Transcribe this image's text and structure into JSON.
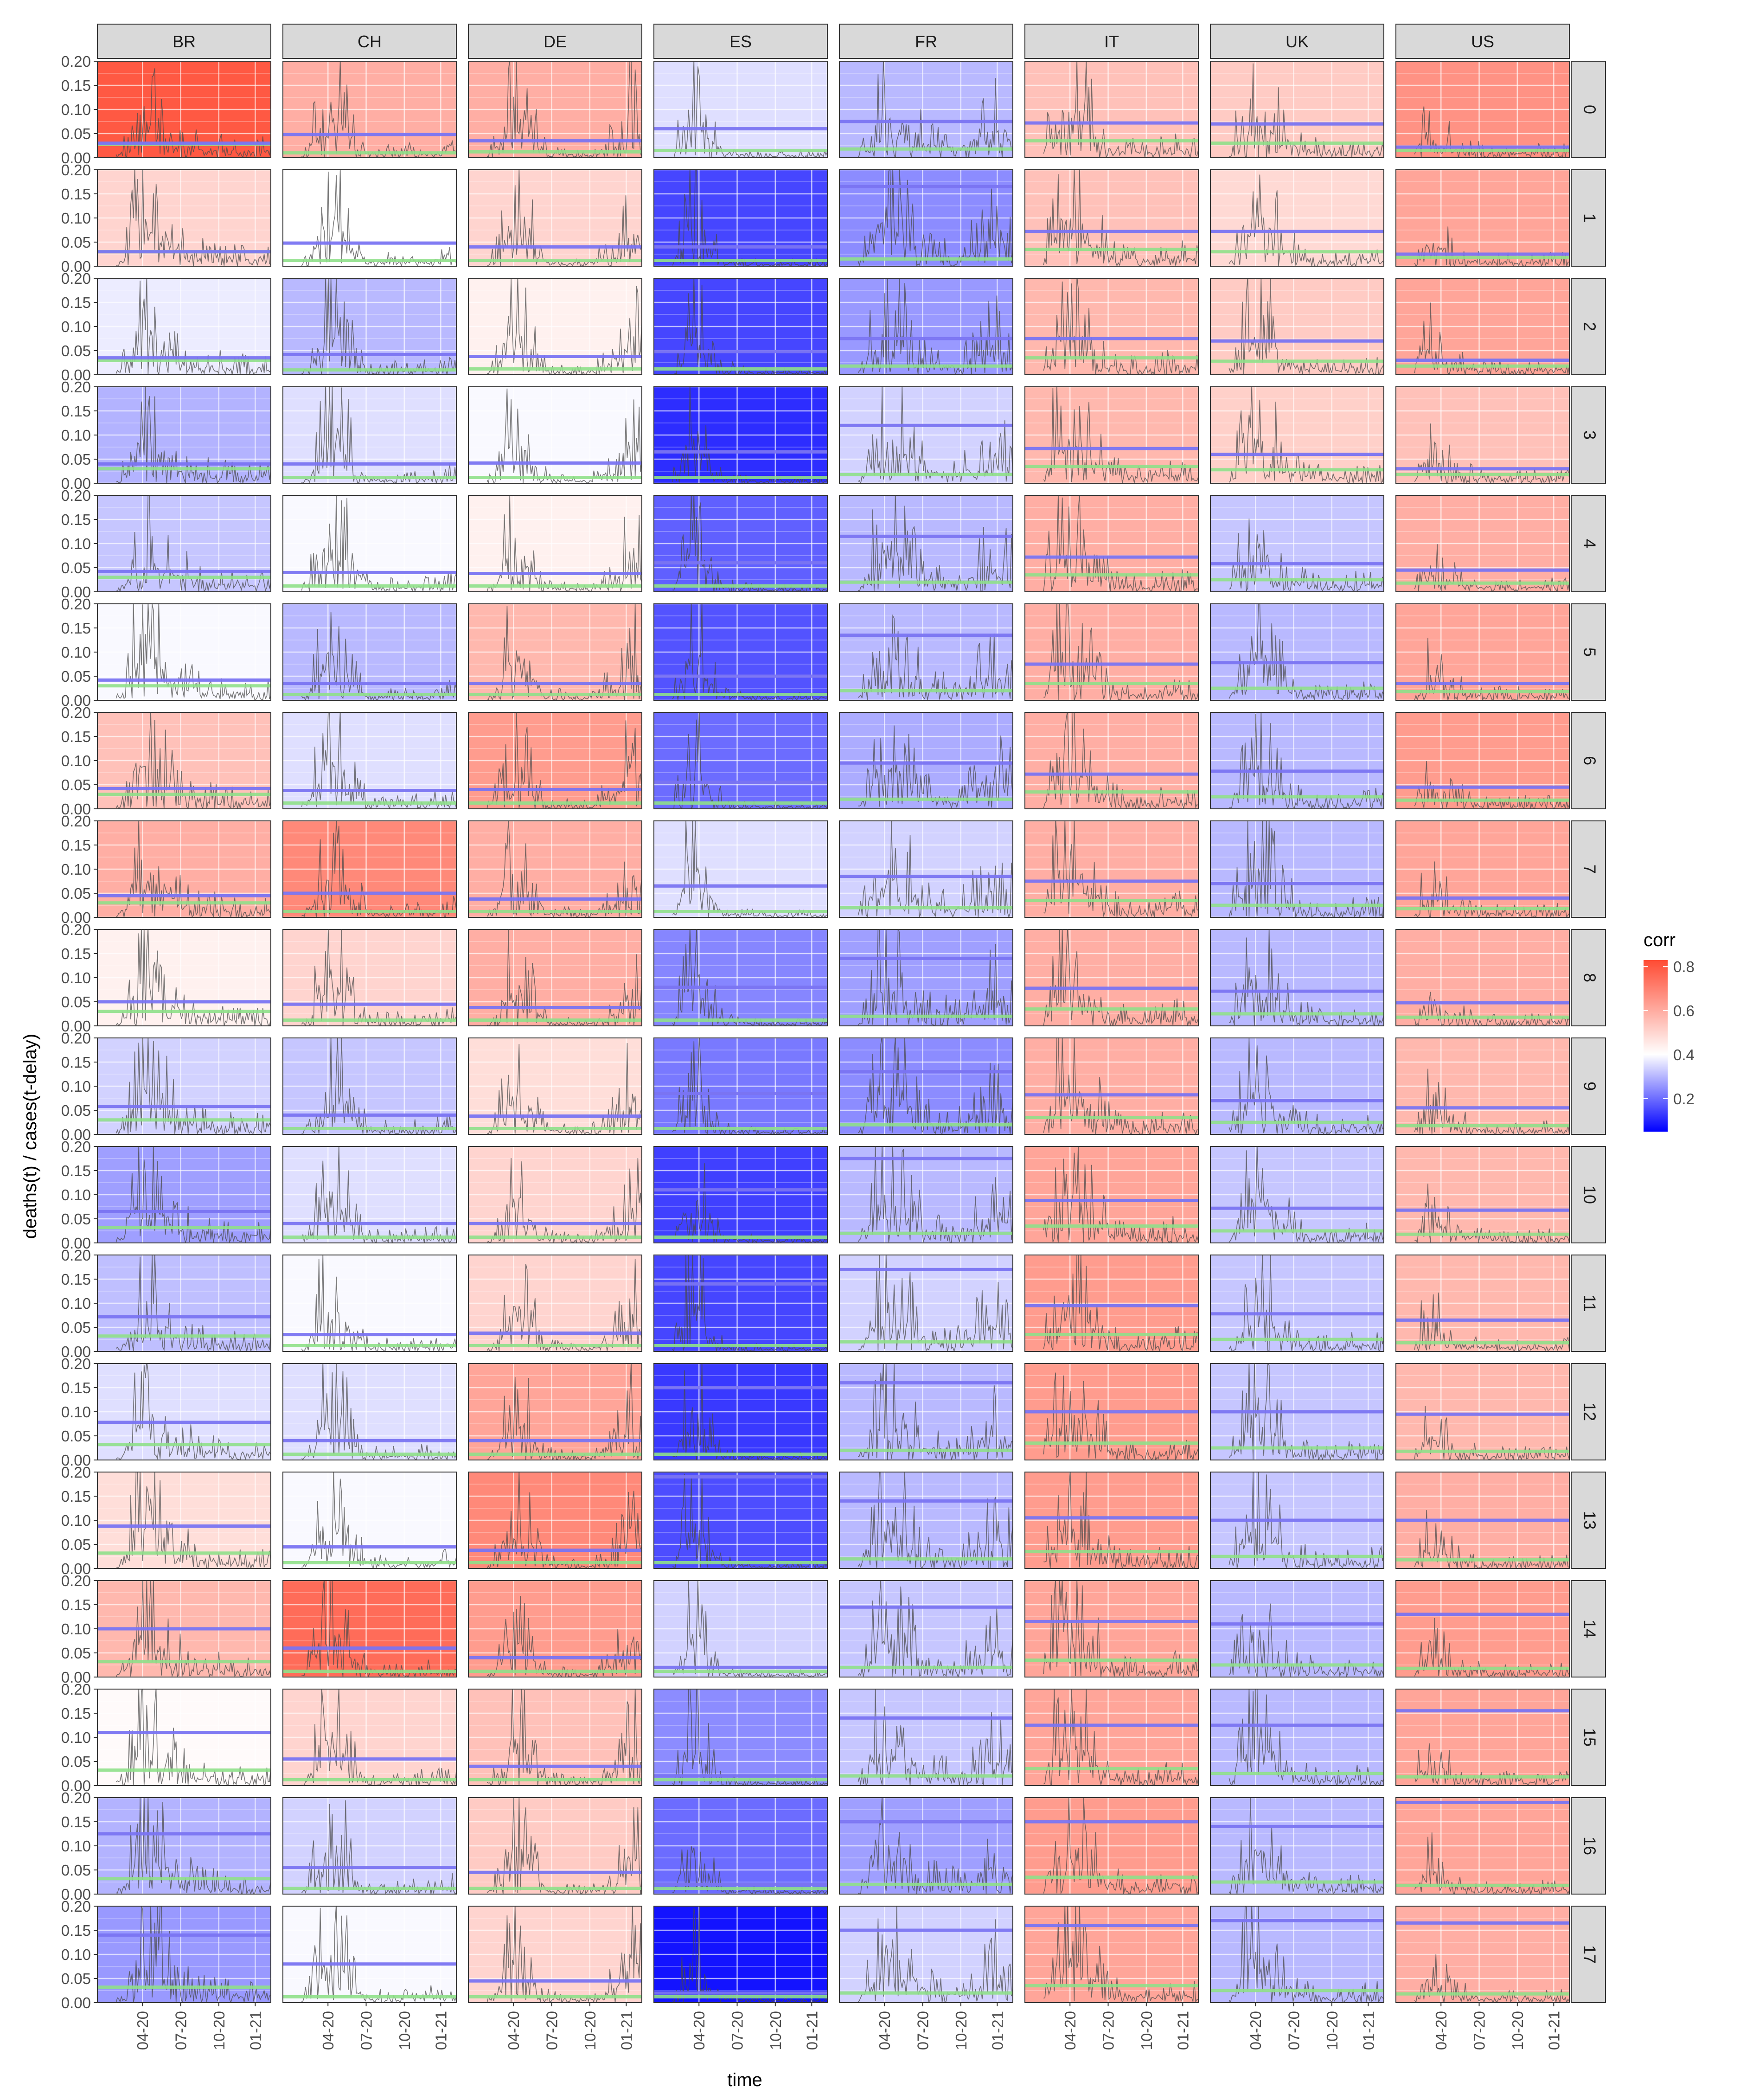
{
  "chart_data": {
    "type": "line",
    "title": "",
    "xlabel": "time",
    "ylabel": "deaths(t) / cases(t-delay)",
    "ylim": [
      0,
      0.2
    ],
    "y_ticks": [
      "0.00",
      "0.05",
      "0.10",
      "0.15",
      "0.20"
    ],
    "x_ticks": [
      "04-20",
      "07-20",
      "10-20",
      "01-21"
    ],
    "x_domain": [
      "2020-02",
      "2021-03"
    ],
    "grid": true,
    "columns": [
      "BR",
      "CH",
      "DE",
      "ES",
      "FR",
      "IT",
      "UK",
      "US"
    ],
    "rows": [
      "0",
      "1",
      "2",
      "3",
      "4",
      "5",
      "6",
      "7",
      "8",
      "9",
      "10",
      "11",
      "12",
      "13",
      "14",
      "15",
      "16",
      "17"
    ],
    "legend": {
      "title": "corr",
      "placement": "right",
      "labels": [
        "0.8",
        "0.6",
        "0.4",
        "0.2"
      ],
      "values": [
        0.8,
        0.6,
        0.4,
        0.2
      ],
      "range": [
        0.05,
        0.83
      ],
      "colors": {
        "low": "#0000ff",
        "mid": "#ffffff",
        "high": "#ff4b33"
      }
    },
    "line_colors": {
      "blue_line": "#7a74f2",
      "green_line": "#8fe08a",
      "series": "#4a4a4a"
    },
    "corr": [
      [
        0.8,
        0.62,
        0.62,
        0.4,
        0.34,
        0.58,
        0.56,
        0.68
      ],
      [
        0.54,
        0.45,
        0.54,
        0.16,
        0.27,
        0.58,
        0.53,
        0.64
      ],
      [
        0.42,
        0.34,
        0.48,
        0.16,
        0.29,
        0.6,
        0.56,
        0.64
      ],
      [
        0.33,
        0.4,
        0.44,
        0.12,
        0.38,
        0.6,
        0.55,
        0.58
      ],
      [
        0.36,
        0.44,
        0.48,
        0.2,
        0.34,
        0.62,
        0.36,
        0.62
      ],
      [
        0.44,
        0.34,
        0.6,
        0.18,
        0.34,
        0.62,
        0.34,
        0.64
      ],
      [
        0.58,
        0.4,
        0.66,
        0.22,
        0.32,
        0.62,
        0.34,
        0.66
      ],
      [
        0.62,
        0.7,
        0.62,
        0.4,
        0.38,
        0.62,
        0.34,
        0.64
      ],
      [
        0.48,
        0.54,
        0.62,
        0.26,
        0.3,
        0.62,
        0.34,
        0.62
      ],
      [
        0.38,
        0.36,
        0.52,
        0.24,
        0.27,
        0.62,
        0.34,
        0.6
      ],
      [
        0.3,
        0.4,
        0.54,
        0.15,
        0.34,
        0.64,
        0.36,
        0.6
      ],
      [
        0.35,
        0.44,
        0.54,
        0.16,
        0.38,
        0.66,
        0.36,
        0.6
      ],
      [
        0.4,
        0.4,
        0.64,
        0.14,
        0.34,
        0.66,
        0.36,
        0.6
      ],
      [
        0.52,
        0.44,
        0.7,
        0.17,
        0.34,
        0.66,
        0.36,
        0.62
      ],
      [
        0.6,
        0.76,
        0.66,
        0.38,
        0.36,
        0.64,
        0.34,
        0.66
      ],
      [
        0.46,
        0.54,
        0.58,
        0.27,
        0.36,
        0.64,
        0.34,
        0.64
      ],
      [
        0.33,
        0.38,
        0.56,
        0.22,
        0.3,
        0.66,
        0.34,
        0.64
      ],
      [
        0.29,
        0.44,
        0.54,
        0.08,
        0.38,
        0.64,
        0.34,
        0.62
      ]
    ],
    "blue_line": [
      [
        0.03,
        0.048,
        0.035,
        0.06,
        0.075,
        0.072,
        0.07,
        0.022
      ],
      [
        0.03,
        0.048,
        0.04,
        0.04,
        0.165,
        0.072,
        0.072,
        0.025
      ],
      [
        0.035,
        0.042,
        0.038,
        0.048,
        0.075,
        0.075,
        0.07,
        0.03
      ],
      [
        0.04,
        0.04,
        0.042,
        0.065,
        0.12,
        0.072,
        0.06,
        0.03
      ],
      [
        0.042,
        0.04,
        0.038,
        0.06,
        0.115,
        0.072,
        0.058,
        0.045
      ],
      [
        0.042,
        0.035,
        0.035,
        0.05,
        0.135,
        0.075,
        0.078,
        0.035
      ],
      [
        0.042,
        0.038,
        0.04,
        0.055,
        0.095,
        0.072,
        0.078,
        0.045
      ],
      [
        0.045,
        0.05,
        0.038,
        0.065,
        0.085,
        0.075,
        0.07,
        0.04
      ],
      [
        0.05,
        0.045,
        0.038,
        0.08,
        0.14,
        0.078,
        0.072,
        0.048
      ],
      [
        0.058,
        0.04,
        0.038,
        0.085,
        0.13,
        0.082,
        0.07,
        0.055
      ],
      [
        0.065,
        0.04,
        0.04,
        0.11,
        0.175,
        0.088,
        0.072,
        0.068
      ],
      [
        0.072,
        0.035,
        0.038,
        0.14,
        0.17,
        0.095,
        0.078,
        0.065
      ],
      [
        0.078,
        0.04,
        0.04,
        0.15,
        0.16,
        0.1,
        0.1,
        0.095
      ],
      [
        0.088,
        0.045,
        0.038,
        0.19,
        0.14,
        0.105,
        0.1,
        0.1
      ],
      [
        0.1,
        0.06,
        0.04,
        0.02,
        0.145,
        0.115,
        0.11,
        0.13
      ],
      [
        0.11,
        0.055,
        0.04,
        0.02,
        0.14,
        0.125,
        0.125,
        0.155
      ],
      [
        0.125,
        0.055,
        0.045,
        0.02,
        0.15,
        0.15,
        0.14,
        0.19
      ],
      [
        0.14,
        0.08,
        0.045,
        0.02,
        0.15,
        0.16,
        0.17,
        0.165
      ]
    ],
    "green_line": [
      [
        0.028,
        0.01,
        0.012,
        0.015,
        0.018,
        0.035,
        0.03,
        0.015
      ],
      [
        0.03,
        0.012,
        0.012,
        0.012,
        0.015,
        0.035,
        0.03,
        0.018
      ],
      [
        0.03,
        0.01,
        0.012,
        0.012,
        0.018,
        0.035,
        0.028,
        0.018
      ],
      [
        0.03,
        0.012,
        0.012,
        0.012,
        0.018,
        0.035,
        0.028,
        0.018
      ],
      [
        0.03,
        0.012,
        0.012,
        0.012,
        0.02,
        0.035,
        0.025,
        0.018
      ],
      [
        0.03,
        0.012,
        0.012,
        0.012,
        0.02,
        0.035,
        0.025,
        0.018
      ],
      [
        0.03,
        0.012,
        0.012,
        0.012,
        0.02,
        0.035,
        0.025,
        0.018
      ],
      [
        0.03,
        0.012,
        0.012,
        0.012,
        0.02,
        0.035,
        0.025,
        0.018
      ],
      [
        0.03,
        0.012,
        0.012,
        0.012,
        0.02,
        0.035,
        0.025,
        0.018
      ],
      [
        0.03,
        0.012,
        0.012,
        0.012,
        0.02,
        0.035,
        0.025,
        0.018
      ],
      [
        0.032,
        0.012,
        0.012,
        0.012,
        0.02,
        0.035,
        0.025,
        0.018
      ],
      [
        0.032,
        0.012,
        0.012,
        0.012,
        0.02,
        0.035,
        0.025,
        0.018
      ],
      [
        0.032,
        0.012,
        0.012,
        0.012,
        0.02,
        0.035,
        0.025,
        0.018
      ],
      [
        0.032,
        0.012,
        0.012,
        0.012,
        0.02,
        0.035,
        0.025,
        0.018
      ],
      [
        0.032,
        0.012,
        0.012,
        0.012,
        0.02,
        0.035,
        0.025,
        0.018
      ],
      [
        0.032,
        0.012,
        0.012,
        0.012,
        0.02,
        0.035,
        0.025,
        0.018
      ],
      [
        0.032,
        0.012,
        0.012,
        0.012,
        0.02,
        0.035,
        0.025,
        0.018
      ],
      [
        0.032,
        0.012,
        0.012,
        0.012,
        0.02,
        0.035,
        0.025,
        0.018
      ]
    ],
    "series_shape": {
      "BR": [
        [
          0.1,
          0.0
        ],
        [
          0.16,
          0.04
        ],
        [
          0.22,
          0.17
        ],
        [
          0.28,
          0.19
        ],
        [
          0.36,
          0.15
        ],
        [
          0.45,
          0.07
        ],
        [
          0.6,
          0.04
        ],
        [
          0.8,
          0.03
        ],
        [
          1.0,
          0.03
        ]
      ],
      "CH": [
        [
          0.1,
          0.0
        ],
        [
          0.16,
          0.05
        ],
        [
          0.22,
          0.15
        ],
        [
          0.28,
          0.19
        ],
        [
          0.34,
          0.18
        ],
        [
          0.4,
          0.08
        ],
        [
          0.5,
          0.02
        ],
        [
          0.7,
          0.02
        ],
        [
          1.0,
          0.03
        ]
      ],
      "DE": [
        [
          0.1,
          0.0
        ],
        [
          0.16,
          0.04
        ],
        [
          0.22,
          0.14
        ],
        [
          0.28,
          0.19
        ],
        [
          0.34,
          0.12
        ],
        [
          0.45,
          0.02
        ],
        [
          0.7,
          0.01
        ],
        [
          0.85,
          0.06
        ],
        [
          0.95,
          0.17
        ],
        [
          1.0,
          0.1
        ]
      ],
      "ES": [
        [
          0.1,
          0.0
        ],
        [
          0.14,
          0.06
        ],
        [
          0.2,
          0.18
        ],
        [
          0.26,
          0.2
        ],
        [
          0.3,
          0.1
        ],
        [
          0.4,
          0.02
        ],
        [
          0.6,
          0.01
        ],
        [
          0.8,
          0.01
        ],
        [
          1.0,
          0.01
        ]
      ],
      "FR": [
        [
          0.1,
          0.0
        ],
        [
          0.16,
          0.06
        ],
        [
          0.22,
          0.18
        ],
        [
          0.28,
          0.19
        ],
        [
          0.36,
          0.15
        ],
        [
          0.5,
          0.05
        ],
        [
          0.7,
          0.04
        ],
        [
          0.9,
          0.12
        ],
        [
          1.0,
          0.08
        ]
      ],
      "IT": [
        [
          0.1,
          0.0
        ],
        [
          0.16,
          0.14
        ],
        [
          0.22,
          0.19
        ],
        [
          0.32,
          0.18
        ],
        [
          0.4,
          0.1
        ],
        [
          0.5,
          0.04
        ],
        [
          0.7,
          0.02
        ],
        [
          0.85,
          0.04
        ],
        [
          1.0,
          0.03
        ]
      ],
      "UK": [
        [
          0.1,
          0.0
        ],
        [
          0.16,
          0.09
        ],
        [
          0.24,
          0.18
        ],
        [
          0.32,
          0.18
        ],
        [
          0.4,
          0.09
        ],
        [
          0.5,
          0.04
        ],
        [
          0.7,
          0.02
        ],
        [
          0.85,
          0.03
        ],
        [
          1.0,
          0.03
        ]
      ],
      "US": [
        [
          0.1,
          0.0
        ],
        [
          0.14,
          0.07
        ],
        [
          0.2,
          0.1
        ],
        [
          0.26,
          0.08
        ],
        [
          0.34,
          0.04
        ],
        [
          0.5,
          0.02
        ],
        [
          0.7,
          0.02
        ],
        [
          0.85,
          0.02
        ],
        [
          1.0,
          0.02
        ]
      ]
    }
  }
}
